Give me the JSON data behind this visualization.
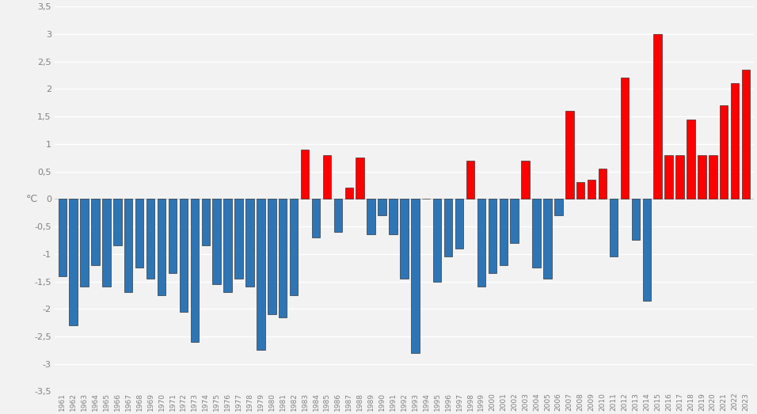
{
  "years": [
    1961,
    1962,
    1963,
    1964,
    1965,
    1966,
    1967,
    1968,
    1969,
    1970,
    1971,
    1972,
    1973,
    1974,
    1975,
    1976,
    1977,
    1978,
    1979,
    1980,
    1981,
    1982,
    1983,
    1984,
    1985,
    1986,
    1987,
    1988,
    1989,
    1990,
    1991,
    1992,
    1993,
    1994,
    1995,
    1996,
    1997,
    1998,
    1999,
    2000,
    2001,
    2002,
    2003,
    2004,
    2005,
    2006,
    2007,
    2008,
    2009,
    2010,
    2011,
    2012,
    2013,
    2014,
    2015,
    2016,
    2017,
    2018,
    2019,
    2020,
    2021,
    2022,
    2023
  ],
  "values": [
    -1.4,
    -2.3,
    -1.6,
    -1.2,
    -1.6,
    -0.85,
    -1.7,
    -1.25,
    -1.45,
    -1.75,
    -1.35,
    -2.05,
    -2.6,
    -0.85,
    -1.55,
    -1.7,
    -1.45,
    -1.6,
    -2.75,
    -2.1,
    -2.15,
    -1.75,
    0.9,
    -0.7,
    0.8,
    -0.6,
    0.2,
    0.75,
    -0.65,
    -0.3,
    -0.65,
    -1.45,
    -2.8,
    0.0,
    -1.5,
    -1.05,
    -0.9,
    0.7,
    -1.6,
    -1.35,
    -1.2,
    -0.8,
    0.7,
    -1.25,
    -1.45,
    -0.3,
    1.6,
    0.3,
    0.35,
    0.55,
    -1.05,
    2.2,
    -0.75,
    -1.85,
    3.0,
    0.8,
    0.8,
    1.45,
    0.8,
    0.8,
    1.7,
    2.1,
    2.35
  ],
  "blue_color": "#2E75B6",
  "red_color": "#FF0000",
  "background_color": "#F2F2F2",
  "plot_bg_color": "#FFFFFF",
  "ylabel": "°C",
  "ylim": [
    -3.5,
    3.5
  ],
  "yticks": [
    -3.5,
    -3.0,
    -2.5,
    -2.0,
    -1.5,
    -1.0,
    -0.5,
    0.0,
    0.5,
    1.0,
    1.5,
    2.0,
    2.5,
    3.0,
    3.5
  ],
  "ytick_labels": [
    "-3,5",
    "-3",
    "-2,5",
    "-2",
    "-1,5",
    "-1",
    "-0,5",
    "0",
    "0,5",
    "1",
    "1,5",
    "2",
    "2,5",
    "3",
    "3,5"
  ],
  "grid_color": "#FFFFFF",
  "bar_edge_color": "#1a1a1a",
  "bar_edge_width": 0.4,
  "tick_color": "#808080",
  "bar_width": 0.75
}
